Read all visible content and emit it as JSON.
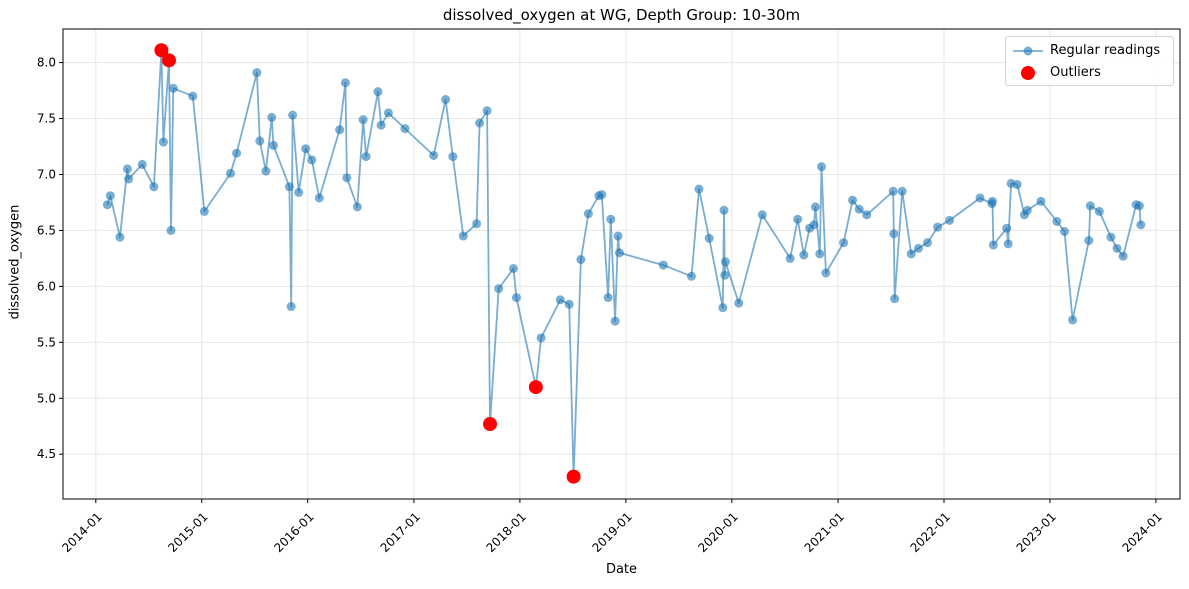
{
  "title": "dissolved_oxygen at WG, Depth Group: 10-30m",
  "xlabel": "Date",
  "ylabel": "dissolved_oxygen",
  "legend": {
    "regular": "Regular readings",
    "outliers": "Outliers"
  },
  "colors": {
    "line": "#1f77b4",
    "outlier": "#ff0000",
    "grid": "#e6e6e6"
  },
  "chart_data": {
    "type": "line",
    "grid": true,
    "legend_position": "top-right",
    "xlim": [
      "2013-09-10",
      "2024-03-24"
    ],
    "ylim": [
      4.1,
      8.3
    ],
    "x_ticks": [
      "2014-01",
      "2015-01",
      "2016-01",
      "2017-01",
      "2018-01",
      "2019-01",
      "2020-01",
      "2021-01",
      "2022-01",
      "2023-01",
      "2024-01"
    ],
    "y_ticks": [
      "4.5",
      "5.0",
      "5.5",
      "6.0",
      "6.5",
      "7.0",
      "7.5",
      "8.0"
    ],
    "series": [
      {
        "name": "Regular readings",
        "x": [
          "2014-02-10",
          "2014-02-20",
          "2014-03-25",
          "2014-04-20",
          "2014-04-24",
          "2014-06-10",
          "2014-07-20",
          "2014-08-15",
          "2014-08-22",
          "2014-09-10",
          "2014-09-17",
          "2014-09-25",
          "2014-12-01",
          "2015-01-10",
          "2015-04-10",
          "2015-05-01",
          "2015-07-10",
          "2015-07-20",
          "2015-08-10",
          "2015-08-30",
          "2015-09-05",
          "2015-10-30",
          "2015-11-05",
          "2015-11-10",
          "2015-12-01",
          "2015-12-25",
          "2016-01-15",
          "2016-02-10",
          "2016-04-20",
          "2016-05-10",
          "2016-05-15",
          "2016-06-20",
          "2016-07-10",
          "2016-07-20",
          "2016-08-30",
          "2016-09-10",
          "2016-10-05",
          "2016-12-01",
          "2017-03-10",
          "2017-04-20",
          "2017-05-15",
          "2017-06-20",
          "2017-08-05",
          "2017-08-15",
          "2017-09-10",
          "2017-09-20",
          "2017-10-20",
          "2017-12-10",
          "2017-12-20",
          "2018-02-25",
          "2018-03-15",
          "2018-05-20",
          "2018-06-20",
          "2018-07-05",
          "2018-07-30",
          "2018-08-25",
          "2018-09-30",
          "2018-10-10",
          "2018-11-01",
          "2018-11-10",
          "2018-11-25",
          "2018-12-05",
          "2018-12-10",
          "2019-05-10",
          "2019-08-15",
          "2019-09-10",
          "2019-10-15",
          "2019-12-01",
          "2019-12-05",
          "2019-12-08",
          "2019-12-10",
          "2020-01-25",
          "2020-04-15",
          "2020-07-20",
          "2020-08-15",
          "2020-09-05",
          "2020-09-25",
          "2020-10-10",
          "2020-10-15",
          "2020-10-30",
          "2020-11-05",
          "2020-11-20",
          "2021-01-20",
          "2021-02-20",
          "2021-03-15",
          "2021-04-10",
          "2021-07-10",
          "2021-07-12",
          "2021-07-15",
          "2021-08-10",
          "2021-09-10",
          "2021-10-05",
          "2021-11-05",
          "2021-12-10",
          "2022-01-20",
          "2022-05-05",
          "2022-06-15",
          "2022-06-17",
          "2022-06-20",
          "2022-08-05",
          "2022-08-10",
          "2022-08-20",
          "2022-09-10",
          "2022-10-05",
          "2022-10-15",
          "2022-12-01",
          "2023-01-25",
          "2023-02-20",
          "2023-03-20",
          "2023-05-15",
          "2023-05-20",
          "2023-06-20",
          "2023-07-30",
          "2023-08-20",
          "2023-09-10",
          "2023-10-25",
          "2023-11-05",
          "2023-11-10"
        ],
        "values": [
          6.73,
          6.81,
          6.44,
          7.05,
          6.96,
          7.09,
          6.89,
          8.11,
          7.29,
          8.02,
          6.5,
          7.77,
          7.7,
          6.67,
          7.01,
          7.19,
          7.91,
          7.3,
          7.03,
          7.51,
          7.26,
          6.89,
          5.82,
          7.53,
          6.84,
          7.23,
          7.13,
          6.79,
          7.4,
          7.82,
          6.97,
          6.71,
          7.49,
          7.16,
          7.74,
          7.44,
          7.55,
          7.41,
          7.17,
          7.67,
          7.16,
          6.45,
          6.56,
          7.46,
          7.57,
          4.77,
          5.98,
          6.16,
          5.9,
          5.1,
          5.54,
          5.88,
          5.84,
          4.3,
          6.24,
          6.65,
          6.81,
          6.82,
          5.9,
          6.6,
          5.69,
          6.45,
          6.3,
          6.19,
          6.09,
          6.87,
          6.43,
          5.81,
          6.68,
          6.1,
          6.22,
          5.85,
          6.64,
          6.25,
          6.6,
          6.28,
          6.52,
          6.55,
          6.71,
          6.29,
          7.07,
          6.12,
          6.39,
          6.77,
          6.69,
          6.64,
          6.85,
          6.47,
          5.89,
          6.85,
          6.29,
          6.34,
          6.39,
          6.53,
          6.59,
          6.79,
          6.74,
          6.76,
          6.37,
          6.52,
          6.38,
          6.92,
          6.91,
          6.64,
          6.68,
          6.76,
          6.58,
          6.49,
          5.7,
          6.41,
          6.72,
          6.67,
          6.44,
          6.34,
          6.27,
          6.73,
          6.72,
          6.55
        ]
      },
      {
        "name": "Outliers",
        "x": [
          "2014-08-15",
          "2014-09-10",
          "2017-09-20",
          "2018-02-25",
          "2018-07-05"
        ],
        "values": [
          8.11,
          8.02,
          4.77,
          5.1,
          4.3
        ]
      }
    ]
  }
}
